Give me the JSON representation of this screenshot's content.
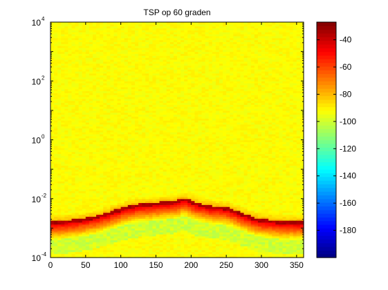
{
  "chart_data": {
    "type": "heatmap",
    "title": "TSP op 60 graden",
    "xlabel": "",
    "ylabel": "",
    "x_range": [
      0,
      360
    ],
    "x_ticks": [
      "0",
      "50",
      "100",
      "150",
      "200",
      "250",
      "300",
      "350"
    ],
    "x_tick_values": [
      0,
      50,
      100,
      150,
      200,
      250,
      300,
      350
    ],
    "y_scale": "log",
    "y_range": [
      0.0001,
      10000
    ],
    "y_ticks": [
      {
        "value": 0.0001,
        "base": "10",
        "exp": "-4"
      },
      {
        "value": 0.01,
        "base": "10",
        "exp": "-2"
      },
      {
        "value": 1,
        "base": "10",
        "exp": "0"
      },
      {
        "value": 100,
        "base": "10",
        "exp": "2"
      },
      {
        "value": 10000,
        "base": "10",
        "exp": "4"
      }
    ],
    "colormap": "jet",
    "colorbar": {
      "range": [
        -200,
        -27
      ],
      "ticks": [
        "-40",
        "-60",
        "-80",
        "-100",
        "-120",
        "-140",
        "-160",
        "-180"
      ],
      "tick_values": [
        -40,
        -60,
        -80,
        -100,
        -120,
        -140,
        -160,
        -180
      ]
    },
    "background_level": -92,
    "ridge": {
      "description_level_peak": -35,
      "x": [
        0,
        10,
        20,
        30,
        40,
        50,
        60,
        70,
        80,
        90,
        100,
        110,
        120,
        130,
        140,
        150,
        160,
        170,
        180,
        190,
        200,
        210,
        220,
        230,
        240,
        250,
        260,
        270,
        280,
        290,
        300,
        310,
        320,
        330,
        340,
        350,
        360
      ],
      "y": [
        0.0015,
        0.0015,
        0.0016,
        0.0017,
        0.0018,
        0.002,
        0.0022,
        0.0025,
        0.003,
        0.0035,
        0.0042,
        0.005,
        0.0055,
        0.006,
        0.0062,
        0.0065,
        0.007,
        0.0072,
        0.0078,
        0.0095,
        0.0075,
        0.0062,
        0.0055,
        0.005,
        0.0048,
        0.0045,
        0.0038,
        0.003,
        0.0025,
        0.002,
        0.0018,
        0.0017,
        0.0016,
        0.0015,
        0.0015,
        0.0015,
        0.0015
      ]
    }
  }
}
